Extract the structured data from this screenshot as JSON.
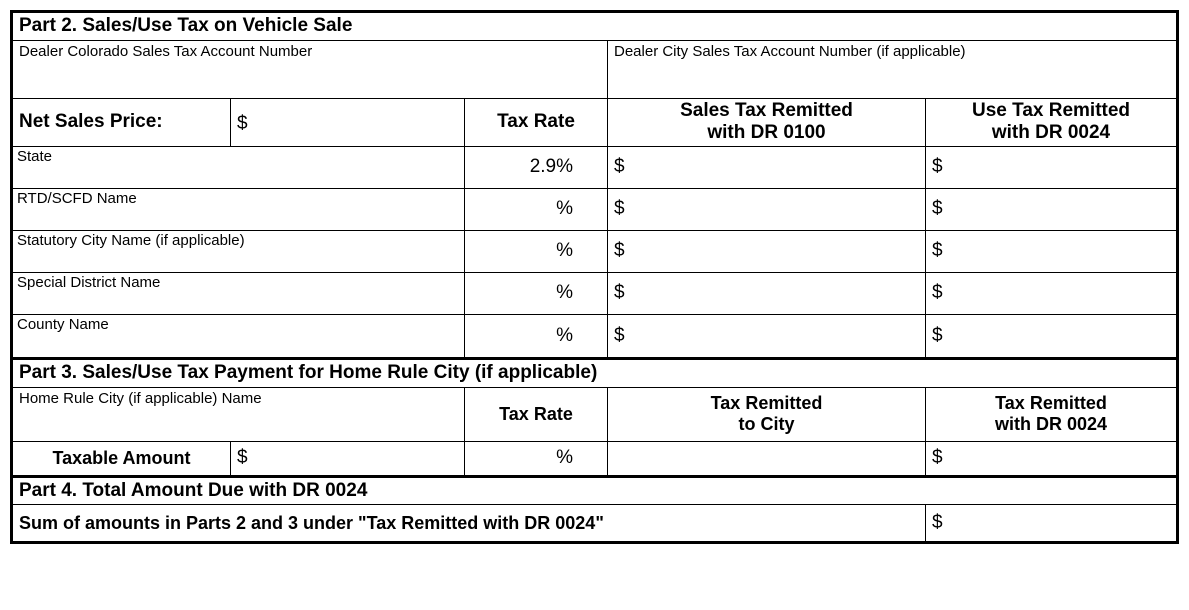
{
  "part2": {
    "title": "Part 2. Sales/Use Tax on Vehicle Sale",
    "dealer_co_label": "Dealer Colorado Sales Tax Account Number",
    "dealer_city_label": "Dealer City Sales Tax Account Number (if applicable)",
    "net_sales_label": "Net Sales Price:",
    "net_sales_value": "$",
    "tax_rate_header": "Tax Rate",
    "sales_remitted_header_l1": "Sales Tax Remitted",
    "sales_remitted_header_l2": "with DR 0100",
    "use_remitted_header_l1": "Use Tax Remitted",
    "use_remitted_header_l2": "with DR 0024",
    "rows": [
      {
        "label": "State",
        "rate": "2.9%",
        "sales": "$",
        "use": "$"
      },
      {
        "label": "RTD/SCFD Name",
        "rate": "%",
        "sales": "$",
        "use": "$"
      },
      {
        "label": "Statutory City Name (if applicable)",
        "rate": "%",
        "sales": "$",
        "use": "$"
      },
      {
        "label": "Special District Name",
        "rate": "%",
        "sales": "$",
        "use": "$"
      },
      {
        "label": "County Name",
        "rate": "%",
        "sales": "$",
        "use": "$"
      }
    ]
  },
  "part3": {
    "title": "Part 3. Sales/Use Tax Payment for Home Rule City (if applicable)",
    "home_rule_label": "Home Rule City (if applicable) Name",
    "tax_rate_header": "Tax Rate",
    "col1_l1": "Tax Remitted",
    "col1_l2": "to City",
    "col2_l1": "Tax Remitted",
    "col2_l2": "with DR 0024",
    "taxable_label": "Taxable Amount",
    "taxable_value": "$",
    "taxable_rate": "%",
    "taxable_use": "$"
  },
  "part4": {
    "title": "Part 4. Total Amount Due with DR 0024",
    "sum_label": "Sum of amounts in Parts 2 and 3 under \"Tax Remitted with DR 0024\"",
    "sum_value": "$"
  }
}
